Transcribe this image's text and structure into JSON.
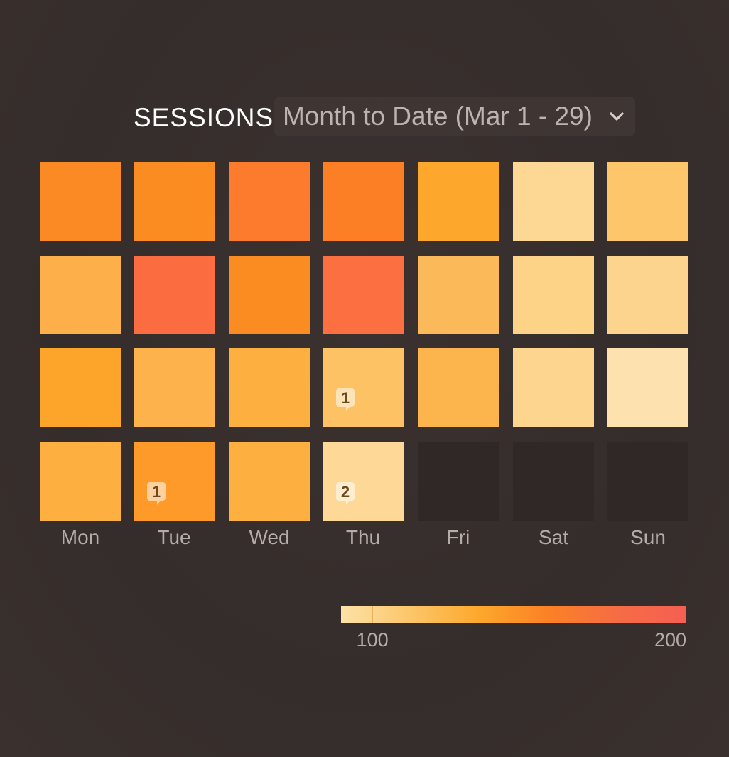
{
  "header": {
    "metric": "SESSIONS",
    "period": "Month to Date (Mar 1 - 29)",
    "chevron_icon": "chevron-down-icon"
  },
  "colors": {
    "background": "#352d2b",
    "empty_cell": "#2f2826",
    "scale": [
      "#fde2a8",
      "#fcc66a",
      "#fda82c",
      "#fb8125",
      "#f66c45",
      "#f55f53"
    ],
    "badge": "#ffffff"
  },
  "chart_data": {
    "type": "heatmap",
    "title": "SESSIONS",
    "columns": [
      "Mon",
      "Tue",
      "Wed",
      "Thu",
      "Fri",
      "Sat",
      "Sun"
    ],
    "rows": [
      [
        {
          "value": 158,
          "color": "#fb8a25"
        },
        {
          "value": 155,
          "color": "#fb8c22"
        },
        {
          "value": 168,
          "color": "#fd7b2c"
        },
        {
          "value": 165,
          "color": "#fd7f25"
        },
        {
          "value": 138,
          "color": "#fda82c"
        },
        {
          "value": 100,
          "color": "#fdd895"
        },
        {
          "value": 115,
          "color": "#fdc66a"
        }
      ],
      [
        {
          "value": 132,
          "color": "#fdb04a"
        },
        {
          "value": 185,
          "color": "#fb6d40"
        },
        {
          "value": 150,
          "color": "#fb8c22"
        },
        {
          "value": 183,
          "color": "#fb6f40"
        },
        {
          "value": 127,
          "color": "#fcb95a"
        },
        {
          "value": 105,
          "color": "#fdd387"
        },
        {
          "value": 102,
          "color": "#fdd48d"
        }
      ],
      [
        {
          "value": 140,
          "color": "#fda42a"
        },
        {
          "value": 128,
          "color": "#fdb24b"
        },
        {
          "value": 132,
          "color": "#fdb040"
        },
        {
          "value": 118,
          "color": "#fdc263",
          "badge": "1"
        },
        {
          "value": 128,
          "color": "#fcb44c"
        },
        {
          "value": 100,
          "color": "#fdd58f"
        },
        {
          "value": 90,
          "color": "#fde2b0"
        }
      ],
      [
        {
          "value": 132,
          "color": "#fdb040"
        },
        {
          "value": 148,
          "color": "#fd9a2a",
          "badge": "1"
        },
        {
          "value": 132,
          "color": "#fdb040"
        },
        {
          "value": 100,
          "color": "#fdd896",
          "badge": "2"
        },
        {
          "value": null
        },
        {
          "value": null
        },
        {
          "value": null
        }
      ]
    ],
    "legend": {
      "min": 90,
      "max": 200,
      "ticks": [
        "100",
        "200"
      ],
      "tick_values": [
        100,
        200
      ]
    }
  }
}
